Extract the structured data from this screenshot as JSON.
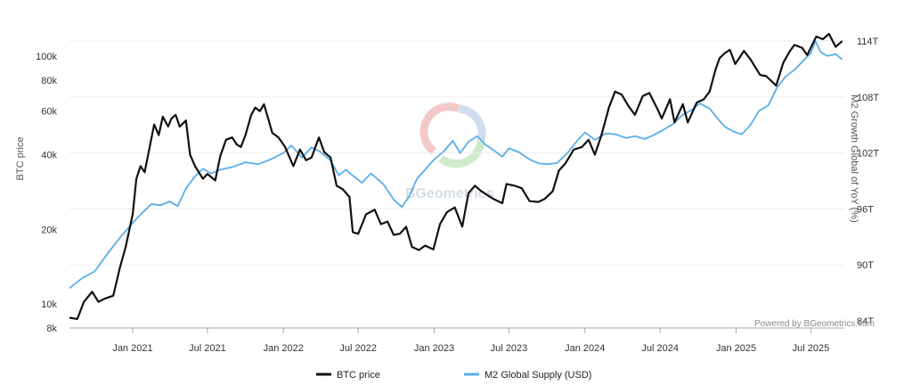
{
  "chart_data": {
    "type": "line",
    "title": "",
    "credit": "Powered by BGeometrics.com",
    "watermark": "BGeometrics",
    "y_left": {
      "label": "BTC price",
      "scale": "log",
      "range": [
        8000,
        130000
      ],
      "ticks": [
        {
          "value": 8000,
          "label": "8k"
        },
        {
          "value": 10000,
          "label": "10k"
        },
        {
          "value": 20000,
          "label": "20k"
        },
        {
          "value": 40000,
          "label": "40k"
        },
        {
          "value": 60000,
          "label": "60k"
        },
        {
          "value": 80000,
          "label": "80k"
        },
        {
          "value": 100000,
          "label": "100k"
        }
      ]
    },
    "y_right": {
      "label": "M2 Growth Global of YoY (%)",
      "scale": "linear",
      "range": [
        84,
        114
      ],
      "ticks": [
        {
          "value": 84,
          "label": "84T"
        },
        {
          "value": 90,
          "label": "90T"
        },
        {
          "value": 96,
          "label": "96T"
        },
        {
          "value": 102,
          "label": "102T"
        },
        {
          "value": 108,
          "label": "108T"
        },
        {
          "value": 114,
          "label": "114T"
        }
      ]
    },
    "x_axis": {
      "range": [
        "2020-08-01",
        "2025-09-20"
      ],
      "ticks": [
        {
          "date": "2021-01-01",
          "label": "Jan 2021"
        },
        {
          "date": "2021-07-01",
          "label": "Jul 2021"
        },
        {
          "date": "2022-01-01",
          "label": "Jan 2022"
        },
        {
          "date": "2022-07-01",
          "label": "Jul 2022"
        },
        {
          "date": "2023-01-01",
          "label": "Jan 2023"
        },
        {
          "date": "2023-07-01",
          "label": "Jul 2023"
        },
        {
          "date": "2024-01-01",
          "label": "Jan 2024"
        },
        {
          "date": "2024-07-01",
          "label": "Jul 2024"
        },
        {
          "date": "2025-01-01",
          "label": "Jan 2025"
        },
        {
          "date": "2025-07-01",
          "label": "Jul 2025"
        }
      ]
    },
    "legend": {
      "position": "bottom-center"
    },
    "series": [
      {
        "name": "BTC price",
        "axis": "left",
        "color": "#111111",
        "points": [
          [
            "2020-08-01",
            8800
          ],
          [
            "2020-08-20",
            8700
          ],
          [
            "2020-09-05",
            10200
          ],
          [
            "2020-09-25",
            11200
          ],
          [
            "2020-10-10",
            10200
          ],
          [
            "2020-10-25",
            10500
          ],
          [
            "2020-11-15",
            10800
          ],
          [
            "2020-12-01",
            14000
          ],
          [
            "2020-12-15",
            17000
          ],
          [
            "2021-01-01",
            23000
          ],
          [
            "2021-01-10",
            32000
          ],
          [
            "2021-01-20",
            36000
          ],
          [
            "2021-01-30",
            34000
          ],
          [
            "2021-02-10",
            42000
          ],
          [
            "2021-02-22",
            53000
          ],
          [
            "2021-03-05",
            48000
          ],
          [
            "2021-03-15",
            57000
          ],
          [
            "2021-03-28",
            52000
          ],
          [
            "2021-04-05",
            56000
          ],
          [
            "2021-04-15",
            58000
          ],
          [
            "2021-04-25",
            52000
          ],
          [
            "2021-05-10",
            55000
          ],
          [
            "2021-05-20",
            40000
          ],
          [
            "2021-06-01",
            36000
          ],
          [
            "2021-06-20",
            32000
          ],
          [
            "2021-07-01",
            33500
          ],
          [
            "2021-07-20",
            31500
          ],
          [
            "2021-08-01",
            39500
          ],
          [
            "2021-08-15",
            46000
          ],
          [
            "2021-08-30",
            47000
          ],
          [
            "2021-09-10",
            44000
          ],
          [
            "2021-09-20",
            43000
          ],
          [
            "2021-10-01",
            48000
          ],
          [
            "2021-10-15",
            58000
          ],
          [
            "2021-10-25",
            62000
          ],
          [
            "2021-11-05",
            60000
          ],
          [
            "2021-11-15",
            64000
          ],
          [
            "2021-11-25",
            56000
          ],
          [
            "2021-12-05",
            49000
          ],
          [
            "2021-12-20",
            47000
          ],
          [
            "2022-01-05",
            43000
          ],
          [
            "2022-01-25",
            36000
          ],
          [
            "2022-02-10",
            42000
          ],
          [
            "2022-02-25",
            38000
          ],
          [
            "2022-03-10",
            39000
          ],
          [
            "2022-03-28",
            47000
          ],
          [
            "2022-04-10",
            41000
          ],
          [
            "2022-04-25",
            39000
          ],
          [
            "2022-05-10",
            30000
          ],
          [
            "2022-05-25",
            29000
          ],
          [
            "2022-06-10",
            27000
          ],
          [
            "2022-06-18",
            19500
          ],
          [
            "2022-07-01",
            19200
          ],
          [
            "2022-07-20",
            23000
          ],
          [
            "2022-08-10",
            24000
          ],
          [
            "2022-08-25",
            21000
          ],
          [
            "2022-09-10",
            21500
          ],
          [
            "2022-09-25",
            19000
          ],
          [
            "2022-10-10",
            19200
          ],
          [
            "2022-10-25",
            20500
          ],
          [
            "2022-11-08",
            17000
          ],
          [
            "2022-11-25",
            16500
          ],
          [
            "2022-12-10",
            17200
          ],
          [
            "2022-12-30",
            16600
          ],
          [
            "2023-01-15",
            21000
          ],
          [
            "2023-02-01",
            23500
          ],
          [
            "2023-02-20",
            24500
          ],
          [
            "2023-03-10",
            20500
          ],
          [
            "2023-03-25",
            28000
          ],
          [
            "2023-04-10",
            30000
          ],
          [
            "2023-04-25",
            28500
          ],
          [
            "2023-05-10",
            27500
          ],
          [
            "2023-05-25",
            26500
          ],
          [
            "2023-06-15",
            25500
          ],
          [
            "2023-06-25",
            30500
          ],
          [
            "2023-07-15",
            30000
          ],
          [
            "2023-08-01",
            29300
          ],
          [
            "2023-08-20",
            26000
          ],
          [
            "2023-09-10",
            25800
          ],
          [
            "2023-09-25",
            26500
          ],
          [
            "2023-10-15",
            28500
          ],
          [
            "2023-10-30",
            34500
          ],
          [
            "2023-11-15",
            37000
          ],
          [
            "2023-12-05",
            42000
          ],
          [
            "2023-12-25",
            43000
          ],
          [
            "2024-01-10",
            46000
          ],
          [
            "2024-01-25",
            40000
          ],
          [
            "2024-02-10",
            48000
          ],
          [
            "2024-02-28",
            62000
          ],
          [
            "2024-03-14",
            72000
          ],
          [
            "2024-03-30",
            70000
          ],
          [
            "2024-04-15",
            63000
          ],
          [
            "2024-05-01",
            58000
          ],
          [
            "2024-05-20",
            69000
          ],
          [
            "2024-06-05",
            71000
          ],
          [
            "2024-06-25",
            61000
          ],
          [
            "2024-07-05",
            56000
          ],
          [
            "2024-07-25",
            67000
          ],
          [
            "2024-08-05",
            54000
          ],
          [
            "2024-08-25",
            64000
          ],
          [
            "2024-09-06",
            54000
          ],
          [
            "2024-09-28",
            65000
          ],
          [
            "2024-10-15",
            67000
          ],
          [
            "2024-10-29",
            72000
          ],
          [
            "2024-11-12",
            88000
          ],
          [
            "2024-11-22",
            98000
          ],
          [
            "2024-12-05",
            103000
          ],
          [
            "2024-12-17",
            106000
          ],
          [
            "2024-12-30",
            93000
          ],
          [
            "2025-01-20",
            105000
          ],
          [
            "2025-02-05",
            97000
          ],
          [
            "2025-02-28",
            84000
          ],
          [
            "2025-03-15",
            83000
          ],
          [
            "2025-04-08",
            76000
          ],
          [
            "2025-04-25",
            94000
          ],
          [
            "2025-05-10",
            104000
          ],
          [
            "2025-05-22",
            111000
          ],
          [
            "2025-06-10",
            108000
          ],
          [
            "2025-06-22",
            101000
          ],
          [
            "2025-07-14",
            120000
          ],
          [
            "2025-07-30",
            117000
          ],
          [
            "2025-08-14",
            123000
          ],
          [
            "2025-08-30",
            109000
          ],
          [
            "2025-09-15",
            115000
          ]
        ]
      },
      {
        "name": "M2 Global Supply (USD)",
        "axis": "right",
        "color": "#5aaee8",
        "points": [
          [
            "2020-08-01",
            87.5
          ],
          [
            "2020-09-01",
            88.6
          ],
          [
            "2020-10-01",
            89.3
          ],
          [
            "2020-11-01",
            91.2
          ],
          [
            "2020-12-01",
            92.9
          ],
          [
            "2021-01-01",
            94.5
          ],
          [
            "2021-01-20",
            95.4
          ],
          [
            "2021-02-15",
            96.5
          ],
          [
            "2021-03-10",
            96.4
          ],
          [
            "2021-04-01",
            96.8
          ],
          [
            "2021-04-20",
            96.3
          ],
          [
            "2021-05-10",
            98.2
          ],
          [
            "2021-06-01",
            99.5
          ],
          [
            "2021-06-20",
            100.3
          ],
          [
            "2021-07-10",
            99.8
          ],
          [
            "2021-08-01",
            100.2
          ],
          [
            "2021-09-01",
            100.5
          ],
          [
            "2021-10-01",
            101.0
          ],
          [
            "2021-11-01",
            100.8
          ],
          [
            "2021-12-01",
            101.3
          ],
          [
            "2022-01-01",
            102.0
          ],
          [
            "2022-01-20",
            102.8
          ],
          [
            "2022-02-15",
            101.5
          ],
          [
            "2022-03-10",
            102.6
          ],
          [
            "2022-04-01",
            102.1
          ],
          [
            "2022-04-25",
            101.2
          ],
          [
            "2022-05-15",
            99.6
          ],
          [
            "2022-06-01",
            100.2
          ],
          [
            "2022-06-20",
            99.5
          ],
          [
            "2022-07-10",
            98.8
          ],
          [
            "2022-08-01",
            99.8
          ],
          [
            "2022-09-01",
            98.6
          ],
          [
            "2022-09-25",
            97.0
          ],
          [
            "2022-10-15",
            96.2
          ],
          [
            "2022-11-01",
            97.3
          ],
          [
            "2022-11-20",
            99.2
          ],
          [
            "2022-12-10",
            100.2
          ],
          [
            "2023-01-01",
            101.3
          ],
          [
            "2023-01-25",
            102.2
          ],
          [
            "2023-02-15",
            103.3
          ],
          [
            "2023-03-05",
            102.0
          ],
          [
            "2023-03-25",
            103.2
          ],
          [
            "2023-04-15",
            103.8
          ],
          [
            "2023-05-05",
            102.9
          ],
          [
            "2023-05-25",
            102.3
          ],
          [
            "2023-06-15",
            101.6
          ],
          [
            "2023-07-01",
            102.5
          ],
          [
            "2023-07-25",
            102.1
          ],
          [
            "2023-08-20",
            101.3
          ],
          [
            "2023-09-10",
            100.9
          ],
          [
            "2023-10-01",
            100.8
          ],
          [
            "2023-10-25",
            100.9
          ],
          [
            "2023-11-20",
            102.0
          ],
          [
            "2023-12-15",
            103.4
          ],
          [
            "2024-01-01",
            104.2
          ],
          [
            "2024-01-25",
            103.4
          ],
          [
            "2024-02-20",
            104.1
          ],
          [
            "2024-03-15",
            104.0
          ],
          [
            "2024-04-10",
            103.6
          ],
          [
            "2024-05-01",
            103.8
          ],
          [
            "2024-05-25",
            103.5
          ],
          [
            "2024-06-15",
            103.9
          ],
          [
            "2024-07-10",
            104.5
          ],
          [
            "2024-08-01",
            105.1
          ],
          [
            "2024-08-25",
            106.1
          ],
          [
            "2024-09-15",
            106.6
          ],
          [
            "2024-10-05",
            107.3
          ],
          [
            "2024-10-28",
            106.8
          ],
          [
            "2024-11-15",
            105.8
          ],
          [
            "2024-12-05",
            104.8
          ],
          [
            "2024-12-25",
            104.3
          ],
          [
            "2025-01-15",
            104.0
          ],
          [
            "2025-02-05",
            105.0
          ],
          [
            "2025-02-25",
            106.5
          ],
          [
            "2025-03-20",
            107.1
          ],
          [
            "2025-04-10",
            109.0
          ],
          [
            "2025-05-01",
            110.2
          ],
          [
            "2025-05-25",
            111.0
          ],
          [
            "2025-06-15",
            112.0
          ],
          [
            "2025-07-01",
            112.7
          ],
          [
            "2025-07-12",
            114.0
          ],
          [
            "2025-07-25",
            112.8
          ],
          [
            "2025-08-10",
            112.4
          ],
          [
            "2025-08-30",
            112.6
          ],
          [
            "2025-09-15",
            112.0
          ]
        ]
      }
    ]
  }
}
